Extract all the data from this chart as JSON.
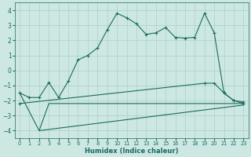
{
  "xlabel": "Humidex (Indice chaleur)",
  "xlim": [
    -0.5,
    23.5
  ],
  "ylim": [
    -4.5,
    4.5
  ],
  "yticks": [
    -4,
    -3,
    -2,
    -1,
    0,
    1,
    2,
    3,
    4
  ],
  "xticks": [
    0,
    1,
    2,
    3,
    4,
    5,
    6,
    7,
    8,
    9,
    10,
    11,
    12,
    13,
    14,
    15,
    16,
    17,
    18,
    19,
    20,
    21,
    22,
    23
  ],
  "bg_color": "#cde8e2",
  "line_color": "#1a6b5e",
  "grid_color": "#aacfc8",
  "series1_x": [
    0,
    1,
    2,
    3,
    4,
    5,
    6,
    7,
    8,
    9,
    10,
    11,
    12,
    13,
    14,
    15,
    16,
    17,
    18,
    19,
    20,
    21,
    22,
    23
  ],
  "series1_y": [
    -1.5,
    -1.8,
    -1.8,
    -0.8,
    -1.8,
    -0.7,
    0.7,
    1.0,
    1.5,
    2.7,
    3.8,
    3.5,
    3.1,
    2.4,
    2.5,
    2.85,
    2.2,
    2.15,
    2.2,
    3.8,
    2.5,
    -1.5,
    -2.0,
    -2.1
  ],
  "series2_x": [
    0,
    2,
    3,
    23
  ],
  "series2_y": [
    -1.5,
    -4.0,
    -2.2,
    -2.2
  ],
  "series3_x": [
    2,
    23
  ],
  "series3_y": [
    -4.0,
    -2.3
  ],
  "series4_x": [
    0,
    19,
    20,
    21,
    22,
    23
  ],
  "series4_y": [
    -2.2,
    -0.85,
    -0.85,
    -1.5,
    -2.0,
    -2.2
  ]
}
